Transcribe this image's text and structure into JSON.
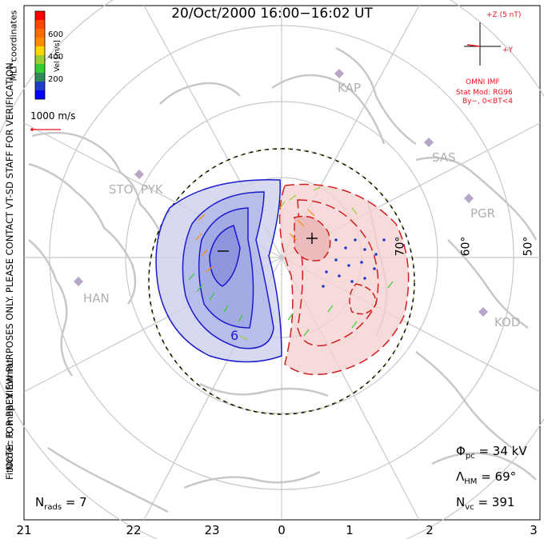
{
  "title": "20/Oct/2000 16:00−16:02 UT",
  "side_note": {
    "line1": "NOTE: FOR PREVIEW PURPOSES ONLY. PLEASE CONTACT VT-SD STAFF FOR VERIFICATION.",
    "line2": "FitOrder: 8, mapEX format"
  },
  "coordinates_label": "MLT coordinates",
  "colorbar": {
    "label": "Vel [m/s]",
    "ticks": [
      "600",
      "400",
      "200"
    ],
    "colors": [
      "#0000ff",
      "#1e3cc8",
      "#2e8b57",
      "#32cd32",
      "#9acd32",
      "#ffd700",
      "#ff8c00",
      "#ff4500",
      "#ff0000"
    ]
  },
  "scale_vector": {
    "label": "1000 m/s"
  },
  "imf": {
    "plus_z": "+Z (5 nT)",
    "plus_y": "+Y",
    "source": "OMNI IMF",
    "model": "Stat Mod: RG96",
    "condition": "By−, 0<BT<4"
  },
  "stations": [
    "KAP",
    "SAS",
    "PGR",
    "KOD",
    "STO",
    "PYK",
    "HAN"
  ],
  "latitude_labels": [
    "70°",
    "60°",
    "50°"
  ],
  "contour_labels": [
    "−",
    "+",
    "6"
  ],
  "stats": {
    "phi_pc_sym": "Φ",
    "phi_pc_sub": "pc",
    "phi_pc_val": "= 34 kV",
    "lambda_hm_sym": "Λ",
    "lambda_hm_sub": "HM",
    "lambda_hm_val": "= 69°",
    "n_vc_sym": "N",
    "n_vc_sub": "vc",
    "n_vc_val": "= 391",
    "n_rads_sym": "N",
    "n_rads_sub": "rads",
    "n_rads_val": "= 7"
  },
  "mlt_labels": [
    "21",
    "22",
    "23",
    "0",
    "1",
    "2",
    "3"
  ],
  "colors": {
    "land": "#c8c8c8",
    "grid": "#c8c8c8",
    "negative_cell": "#1a1acd",
    "positive_cell": "#d21e1e",
    "annotation": "#e8141e"
  }
}
